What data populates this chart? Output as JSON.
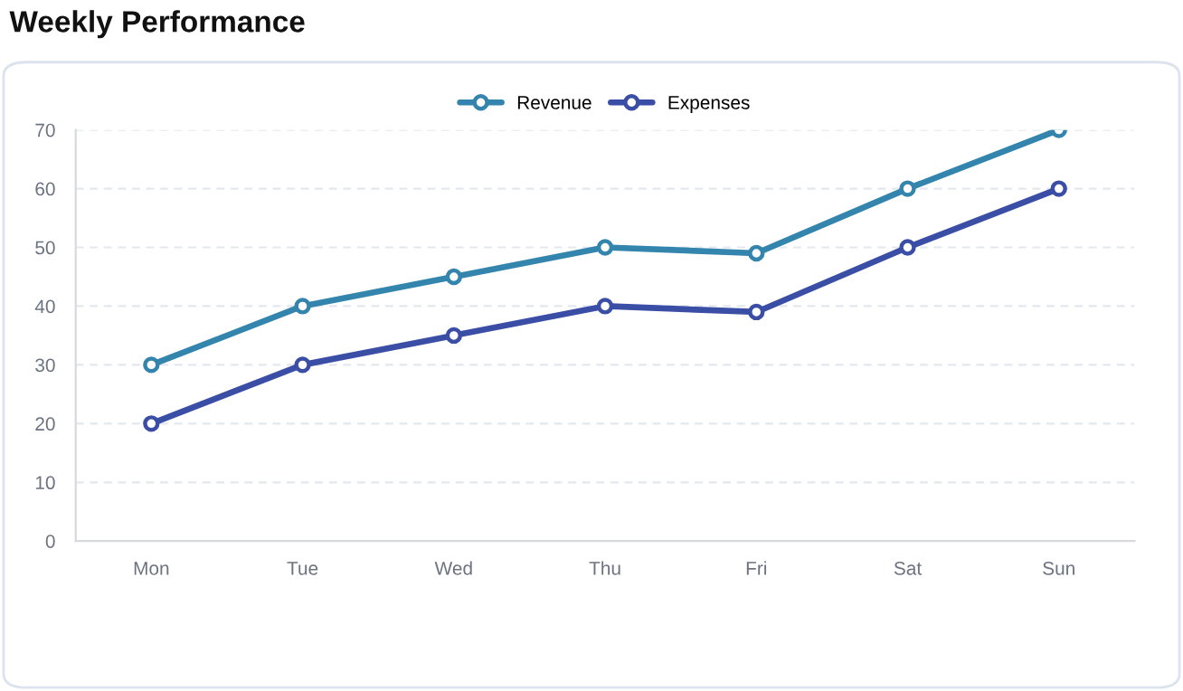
{
  "chart_data": {
    "type": "line",
    "title": "Weekly Performance",
    "categories": [
      "Mon",
      "Tue",
      "Wed",
      "Thu",
      "Fri",
      "Sat",
      "Sun"
    ],
    "series": [
      {
        "name": "Revenue",
        "color": "#3485ad",
        "values": [
          30,
          40,
          45,
          50,
          49,
          60,
          70
        ]
      },
      {
        "name": "Expenses",
        "color": "#3a4ea6",
        "values": [
          20,
          30,
          35,
          40,
          39,
          50,
          60
        ]
      }
    ],
    "ylim": [
      0,
      70
    ],
    "yticks": [
      0,
      10,
      20,
      30,
      40,
      50,
      60,
      70
    ],
    "grid": "y",
    "legend": "top",
    "marker": "circle",
    "line_style": "solid"
  }
}
